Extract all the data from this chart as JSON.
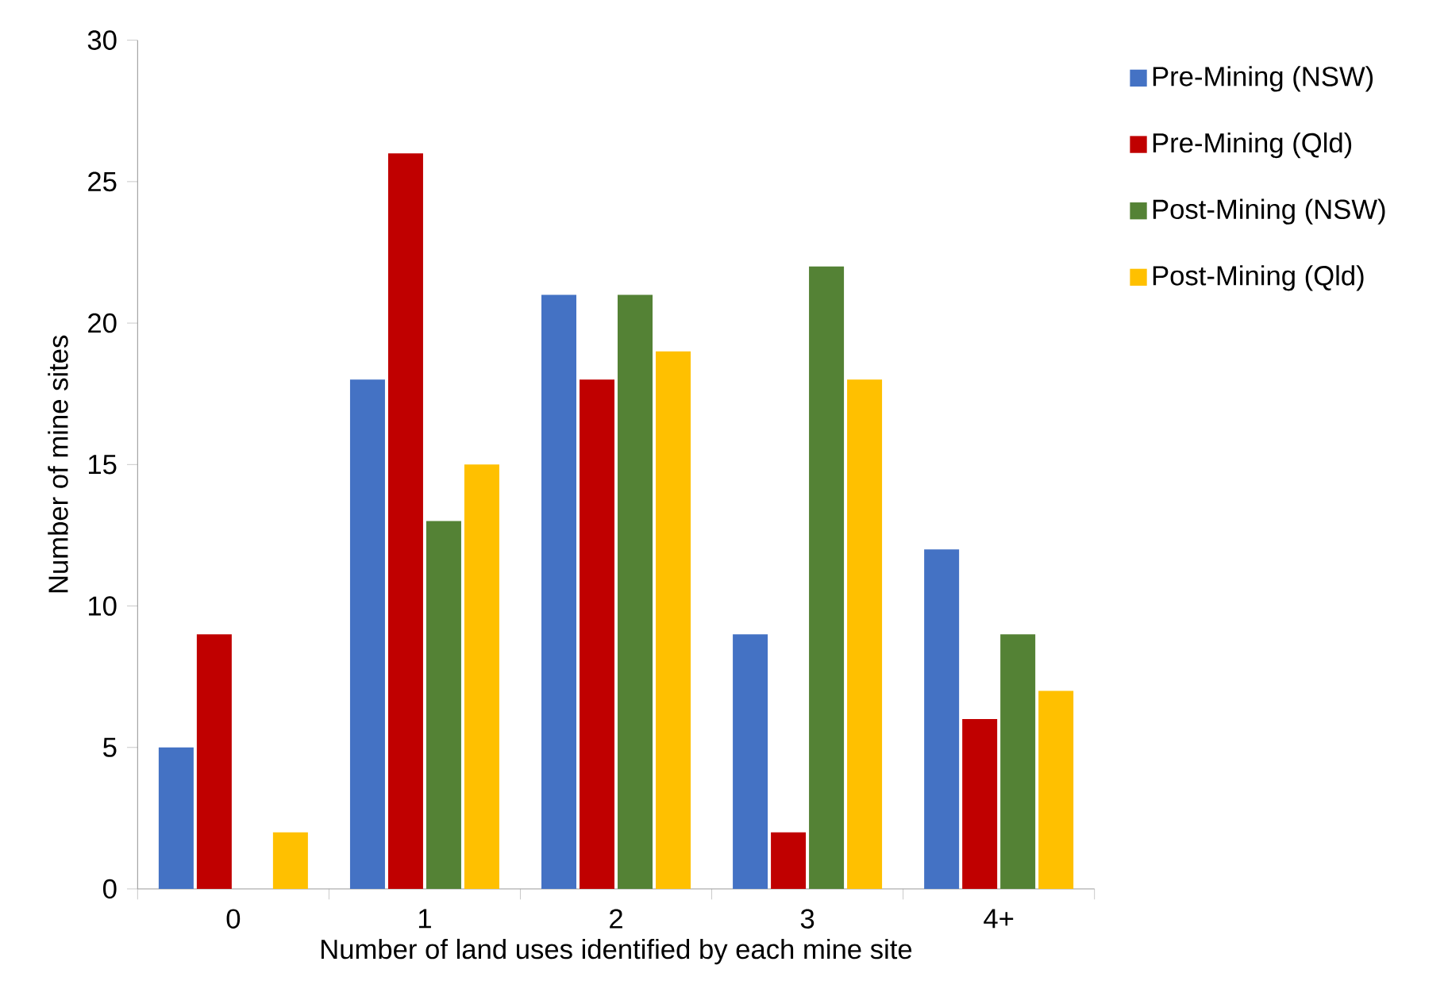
{
  "chart_data": {
    "type": "bar",
    "xlabel": "Number of land uses identified by each mine site",
    "ylabel": "Number of mine sites",
    "categories": [
      "0",
      "1",
      "2",
      "3",
      "4+"
    ],
    "series": [
      {
        "name": "Pre-Mining (NSW)",
        "color": "#4472c4",
        "values": [
          5,
          18,
          21,
          9,
          12
        ]
      },
      {
        "name": "Pre-Mining (Qld)",
        "color": "#c00000",
        "values": [
          9,
          26,
          18,
          2,
          6
        ]
      },
      {
        "name": "Post-Mining (NSW)",
        "color": "#548235",
        "values": [
          0,
          13,
          21,
          22,
          9
        ]
      },
      {
        "name": "Post-Mining (Qld)",
        "color": "#ffc000",
        "values": [
          2,
          15,
          19,
          18,
          7
        ]
      }
    ],
    "ylim": [
      0,
      30
    ],
    "yticks": [
      0,
      5,
      10,
      15,
      20,
      25,
      30
    ],
    "grid": false,
    "legend": "right"
  }
}
